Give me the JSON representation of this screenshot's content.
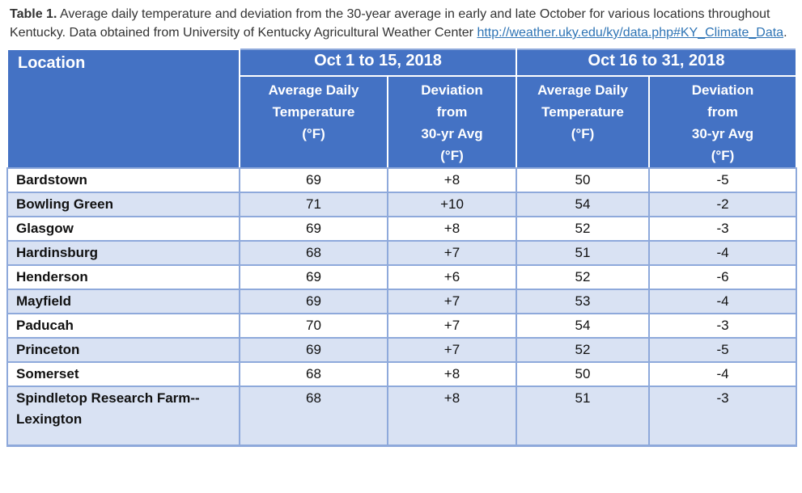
{
  "caption": {
    "label": "Table 1.",
    "text_before_link": " Average daily temperature and deviation from the 30-year average in early and late October for various locations throughout Kentucky. Data obtained from University of Kentucky Agricultural Weather Center ",
    "link": "http://weather.uky.edu/ky/data.php#KY_Climate_Data",
    "text_after_link": "."
  },
  "table": {
    "location_header": "Location",
    "group_headers": [
      "Oct 1 to 15, 2018",
      "Oct 16 to 31, 2018"
    ],
    "subheaders": [
      "Average Daily\nTemperature\n(°F)",
      "Deviation\nfrom\n30-yr Avg\n(°F)",
      "Average Daily\nTemperature\n(°F)",
      "Deviation\nfrom\n30-yr Avg\n(°F)"
    ],
    "rows": [
      {
        "location": "Bardstown",
        "values": [
          "69",
          "+8",
          "50",
          "-5"
        ]
      },
      {
        "location": "Bowling Green",
        "values": [
          "71",
          "+10",
          "54",
          "-2"
        ]
      },
      {
        "location": "Glasgow",
        "values": [
          "69",
          "+8",
          "52",
          "-3"
        ]
      },
      {
        "location": "Hardinsburg",
        "values": [
          "68",
          "+7",
          "51",
          "-4"
        ]
      },
      {
        "location": "Henderson",
        "values": [
          "69",
          "+6",
          "52",
          "-6"
        ]
      },
      {
        "location": "Mayfield",
        "values": [
          "69",
          "+7",
          "53",
          "-4"
        ]
      },
      {
        "location": "Paducah",
        "values": [
          "70",
          "+7",
          "54",
          "-3"
        ]
      },
      {
        "location": "Princeton",
        "values": [
          "69",
          "+7",
          "52",
          "-5"
        ]
      },
      {
        "location": "Somerset",
        "values": [
          "68",
          "+8",
          "50",
          "-4"
        ]
      },
      {
        "location": "Spindletop Research Farm--Lexington",
        "values": [
          "68",
          "+8",
          "51",
          "-3"
        ]
      }
    ]
  },
  "colors": {
    "header_bg": "#4472C4",
    "header_text": "#FFFFFF",
    "alt_row_bg": "#D9E2F3",
    "row_bg": "#FFFFFF",
    "grid_border": "#8EA9DB",
    "link": "#2E74B5",
    "caption_text": "#333333",
    "body_text": "#111111"
  }
}
